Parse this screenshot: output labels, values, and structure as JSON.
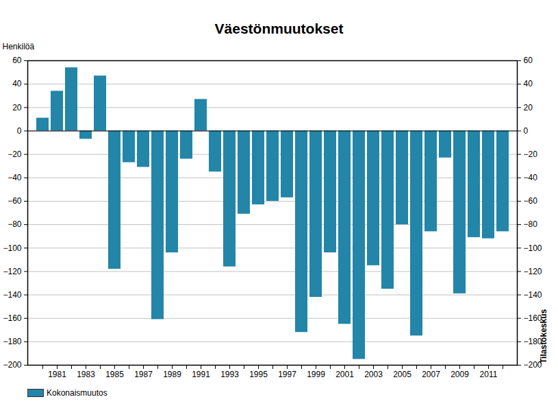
{
  "chart_data": {
    "type": "bar",
    "title": "Väestönmuutokset",
    "y_label": "Henkilöä",
    "source": "Tilastokeskus",
    "categories": [
      null,
      "1981",
      null,
      "1983",
      null,
      "1985",
      null,
      "1987",
      null,
      "1989",
      null,
      "1991",
      null,
      "1993",
      null,
      "1995",
      null,
      "1997",
      null,
      "1999",
      null,
      "2001",
      null,
      "2003",
      null,
      "2005",
      null,
      "2007",
      null,
      "2009",
      null,
      "2011",
      null
    ],
    "series": [
      {
        "name": "Kokonaismuutos",
        "color": "#2385a8",
        "values": [
          11,
          34,
          54,
          -7,
          47,
          -118,
          -27,
          -31,
          -161,
          -104,
          -24,
          27,
          -35,
          -116,
          -71,
          -63,
          -60,
          -57,
          -172,
          -142,
          -104,
          -165,
          -195,
          -115,
          -135,
          -80,
          -175,
          -86,
          -23,
          -139,
          -91,
          -92,
          -86
        ]
      }
    ],
    "ylim": [
      -200,
      60
    ],
    "yticks": [
      -200,
      -180,
      -160,
      -140,
      -120,
      -100,
      -80,
      -60,
      -40,
      -20,
      0,
      20,
      40,
      60
    ],
    "grid": true,
    "legend": "bottom-left"
  }
}
